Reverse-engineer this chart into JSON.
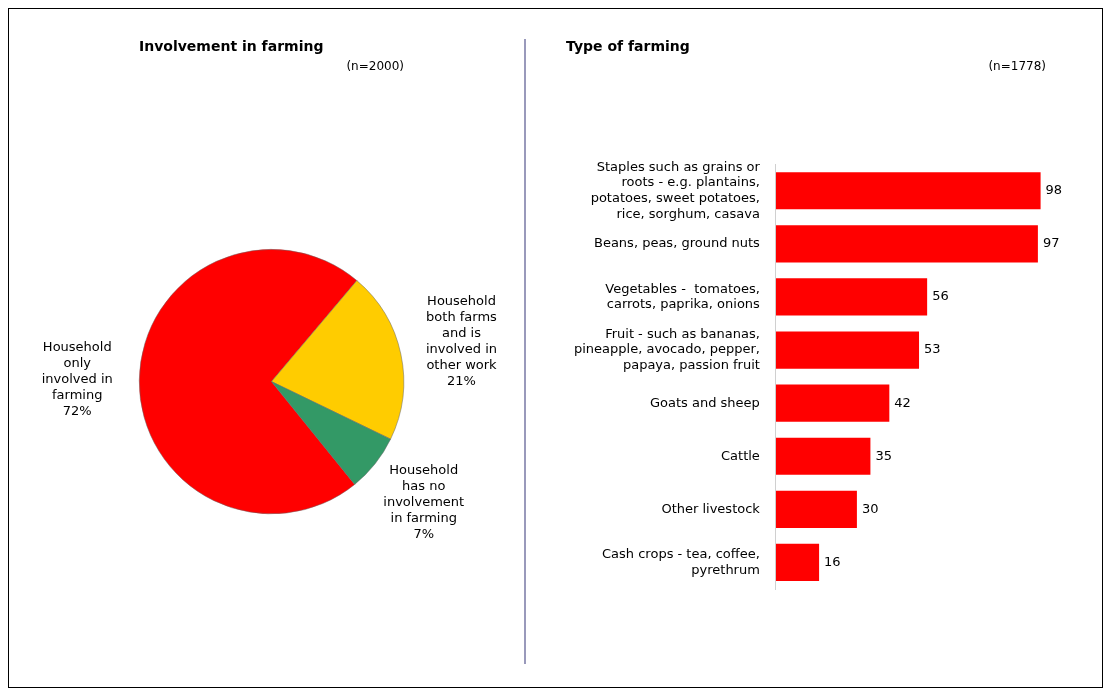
{
  "chart_data": [
    {
      "type": "pie",
      "title": "Involvement in farming",
      "subtitle": "(n=2000)",
      "categories": [
        "Household only involved in farming",
        "Household both farms and is involved in other work",
        "Household has no involvement in farming"
      ],
      "values": [
        72,
        21,
        7
      ],
      "colors": [
        "#ff0000",
        "#ffcc00",
        "#339966"
      ],
      "value_labels": [
        "72%",
        "21%",
        "7%"
      ]
    },
    {
      "type": "bar",
      "orientation": "horizontal",
      "title": "Type of farming",
      "subtitle": "(n=1778)",
      "categories": [
        "Staples such as grains or roots - e.g. plantains, potatoes, sweet potatoes, rice, sorghum, casava",
        "Beans, peas, ground nuts",
        "Vegetables -  tomatoes, carrots, paprika, onions",
        "Fruit - such as bananas, pineapple, avocado, pepper, papaya, passion fruit",
        "Goats and sheep",
        "Cattle",
        "Other livestock",
        "Cash crops - tea, coffee, pyrethrum"
      ],
      "values": [
        98,
        97,
        56,
        53,
        42,
        35,
        30,
        16
      ],
      "color": "#ff0000",
      "data_labels": true
    }
  ]
}
